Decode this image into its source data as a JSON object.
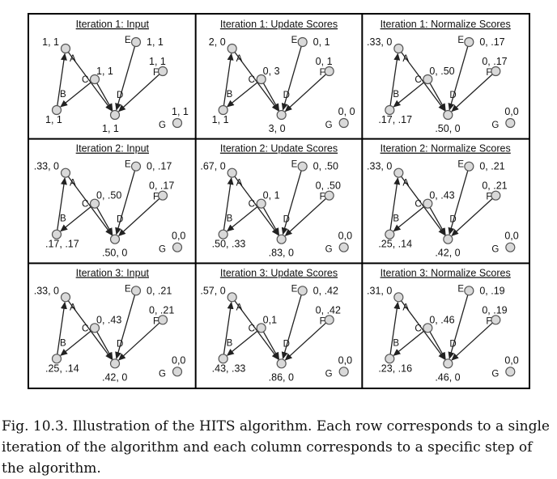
{
  "figure": {
    "panels": [
      {
        "title": "Iteration 1: Input",
        "labels": {
          "A": "1, 1",
          "B": "1, 1",
          "C": "1, 1",
          "D": "1, 1",
          "E": "1, 1",
          "F": "1, 1",
          "G": "1, 1"
        }
      },
      {
        "title": "Iteration 1: Update Scores",
        "labels": {
          "A": "2, 0",
          "B": "1, 1",
          "C": "0, 3",
          "D": "3, 0",
          "E": "0, 1",
          "F": "0, 1",
          "G": "0, 0"
        }
      },
      {
        "title": "Iteration 1: Normalize Scores",
        "labels": {
          "A": ".33, 0",
          "B": ".17, .17",
          "C": "0, .50",
          "D": ".50, 0",
          "E": "0, .17",
          "F": "0, .17",
          "G": "0,0"
        }
      },
      {
        "title": "Iteration 2: Input",
        "labels": {
          "A": ".33, 0",
          "B": ".17, .17",
          "C": "0, .50",
          "D": ".50, 0",
          "E": "0, .17",
          "F": "0, .17",
          "G": "0,0"
        }
      },
      {
        "title": "Iteration 2: Update Scores",
        "labels": {
          "A": ".67, 0",
          "B": ".50, .33",
          "C": "0, 1",
          "D": ".83, 0",
          "E": "0, .50",
          "F": "0, .50",
          "G": "0,0"
        }
      },
      {
        "title": "Iteration 2: Normalize Scores",
        "labels": {
          "A": ".33, 0",
          "B": ".25, .14",
          "C": "0, .43",
          "D": ".42, 0",
          "E": "0, .21",
          "F": "0, .21",
          "G": "0,0"
        }
      },
      {
        "title": "Iteration 3: Input",
        "labels": {
          "A": ".33, 0",
          "B": ".25, .14",
          "C": "0, .43",
          "D": ".42, 0",
          "E": "0, .21",
          "F": "0, .21",
          "G": "0,0"
        }
      },
      {
        "title": "Iteration 3: Update Scores",
        "labels": {
          "A": ".57, 0",
          "B": ".43, .33",
          "C": "0,1",
          "D": ".86, 0",
          "E": "0, .42",
          "F": "0, .42",
          "G": "0,0"
        }
      },
      {
        "title": "Iteration 3: Normalize Scores",
        "labels": {
          "A": ".31, 0",
          "B": ".23, .16",
          "C": "0, .46",
          "D": ".46, 0",
          "E": "0, .19",
          "F": "0, .19",
          "G": "0,0"
        }
      }
    ],
    "edges": [
      [
        "B",
        "A"
      ],
      [
        "C",
        "B"
      ],
      [
        "A",
        "D"
      ],
      [
        "C",
        "D"
      ],
      [
        "E",
        "D"
      ],
      [
        "F",
        "D"
      ]
    ],
    "node_colors": {
      "fill": "#d9d9d9",
      "stroke": "#555555",
      "edge": "#222222"
    }
  },
  "caption": {
    "label": "Fig. 10.3.",
    "text": " Illustration of the HITS algorithm. Each row corresponds to a single iteration of the algorithm and each column corresponds to a specific step of the algorithm."
  }
}
